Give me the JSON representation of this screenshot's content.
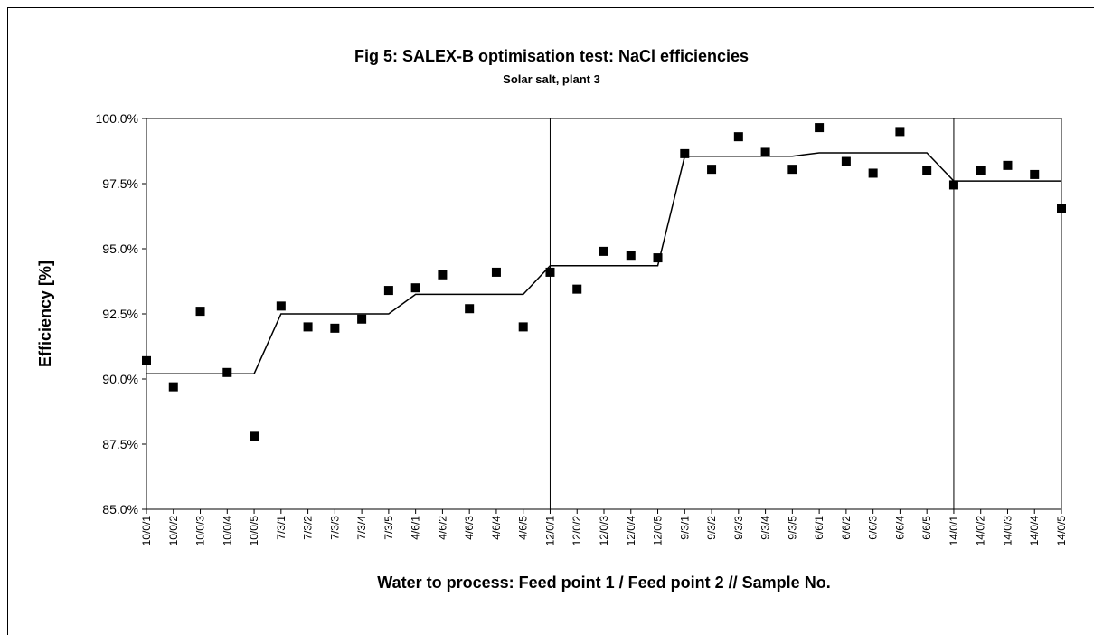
{
  "chart_data": {
    "type": "scatter",
    "title": "Fig 5:   SALEX-B optimisation test: NaCl efficiencies",
    "subtitle": "Solar salt, plant 3",
    "y_label": "Efficiency [%]",
    "x_label": "Water to process: Feed point 1 / Feed point 2 // Sample No.",
    "categories": [
      "10/0/1",
      "10/0/2",
      "10/0/3",
      "10/0/4",
      "10/0/5",
      "7/3/1",
      "7/3/2",
      "7/3/3",
      "7/3/4",
      "7/3/5",
      "4/6/1",
      "4/6/2",
      "4/6/3",
      "4/6/4",
      "4/6/5",
      "12/0/1",
      "12/0/2",
      "12/0/3",
      "12/0/4",
      "12/0/5",
      "9/3/1",
      "9/3/2",
      "9/3/3",
      "9/3/4",
      "9/3/5",
      "6/6/1",
      "6/6/2",
      "6/6/3",
      "6/6/4",
      "6/6/5",
      "14/0/1",
      "14/0/2",
      "14/0/3",
      "14/0/4",
      "14/0/5"
    ],
    "series": [
      {
        "kind": "points",
        "color": "#000000",
        "values": [
          90.7,
          89.7,
          92.6,
          90.25,
          87.8,
          92.8,
          92.0,
          91.95,
          92.3,
          93.4,
          93.5,
          94.0,
          92.7,
          94.1,
          92.0,
          94.1,
          93.45,
          94.9,
          94.75,
          94.65,
          98.65,
          98.05,
          99.3,
          98.7,
          98.05,
          99.65,
          98.35,
          97.9,
          99.5,
          98.0,
          97.45,
          98.0,
          98.2,
          97.85,
          96.55
        ]
      },
      {
        "kind": "line",
        "color": "#000000",
        "values": [
          90.2,
          90.2,
          90.2,
          90.2,
          90.2,
          92.5,
          92.5,
          92.5,
          92.5,
          92.5,
          93.25,
          93.25,
          93.25,
          93.25,
          93.25,
          94.35,
          94.35,
          94.35,
          94.35,
          94.35,
          98.55,
          98.55,
          98.55,
          98.55,
          98.55,
          98.68,
          98.68,
          98.68,
          98.68,
          98.68,
          97.6,
          97.6,
          97.6,
          97.6,
          97.6
        ]
      }
    ],
    "ylim": [
      85,
      100
    ],
    "yticks": [
      {
        "value": 85,
        "label": "85.0%"
      },
      {
        "value": 87.5,
        "label": "87.5%"
      },
      {
        "value": 90,
        "label": "90.0%"
      },
      {
        "value": 92.5,
        "label": "92.5%"
      },
      {
        "value": 95,
        "label": "95.0%"
      },
      {
        "value": 97.5,
        "label": "97.5%"
      },
      {
        "value": 100,
        "label": "100.0%"
      }
    ],
    "grid": false
  }
}
